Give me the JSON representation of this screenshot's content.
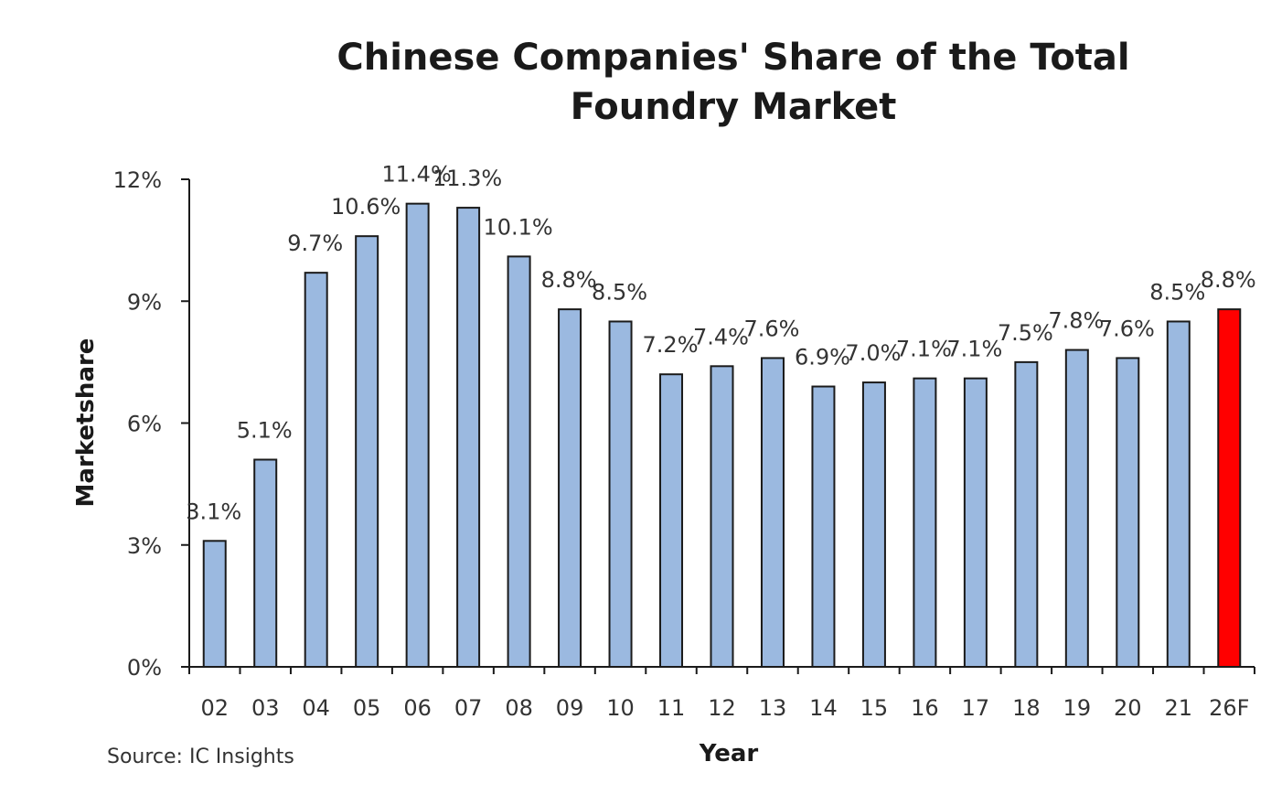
{
  "chart_data": {
    "type": "bar",
    "title": "Chinese Companies' Share of the Total Foundry Market",
    "title_lines": [
      "Chinese Companies' Share of the Total",
      "Foundry Market"
    ],
    "xlabel": "Year",
    "ylabel": "Marketshare",
    "source": "Source: IC Insights",
    "categories": [
      "02",
      "03",
      "04",
      "05",
      "06",
      "07",
      "08",
      "09",
      "10",
      "11",
      "12",
      "13",
      "14",
      "15",
      "16",
      "17",
      "18",
      "19",
      "20",
      "21",
      "26F"
    ],
    "values": [
      3.1,
      5.1,
      9.7,
      10.6,
      11.4,
      11.3,
      10.1,
      8.8,
      8.5,
      7.2,
      7.4,
      7.6,
      6.9,
      7.0,
      7.1,
      7.1,
      7.5,
      7.8,
      7.6,
      8.5,
      8.8
    ],
    "data_labels": [
      "3.1%",
      "5.1%",
      "9.7%",
      "10.6%",
      "11.4%",
      "11.3%",
      "10.1%",
      "8.8%",
      "8.5%",
      "7.2%",
      "7.4%",
      "7.6%",
      "6.9%",
      "7.0%",
      "7.1%",
      "7.1%",
      "7.5%",
      "7.8%",
      "7.6%",
      "8.5%",
      "8.8%"
    ],
    "ylim": [
      0,
      12
    ],
    "yticks": [
      0,
      3,
      6,
      9,
      12
    ],
    "ytick_labels": [
      "0%",
      "3%",
      "6%",
      "9%",
      "12%"
    ],
    "grid": false,
    "legend": "none",
    "colors": {
      "bar": "#9bb9e0",
      "bar_outline": "#1a1a1a",
      "forecast_bar": "#ff0000",
      "axis": "#1a1a1a"
    },
    "highlight_category": "26F"
  }
}
